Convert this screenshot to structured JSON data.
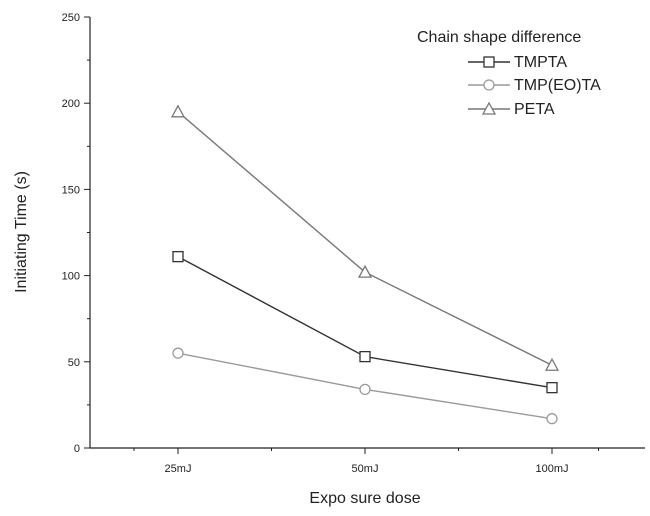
{
  "chart_data": {
    "type": "line",
    "title": "",
    "xlabel": "Expo sure dose",
    "ylabel": "Initiating Time (s)",
    "categories": [
      "25mJ",
      "50mJ",
      "100mJ"
    ],
    "ylim": [
      0,
      250
    ],
    "yticks": [
      0,
      50,
      100,
      150,
      200,
      250
    ],
    "grid": false,
    "legend": {
      "title": "Chain shape difference",
      "placement": "top-right"
    },
    "series": [
      {
        "name": "TMPTA",
        "marker": "square",
        "color": "#333333",
        "values": [
          111,
          53,
          35
        ]
      },
      {
        "name": "TMP(EO)TA",
        "marker": "circle",
        "color": "#9a9a9a",
        "values": [
          55,
          34,
          17
        ]
      },
      {
        "name": "PETA",
        "marker": "triangle",
        "color": "#777777",
        "values": [
          195,
          102,
          48
        ]
      }
    ]
  }
}
